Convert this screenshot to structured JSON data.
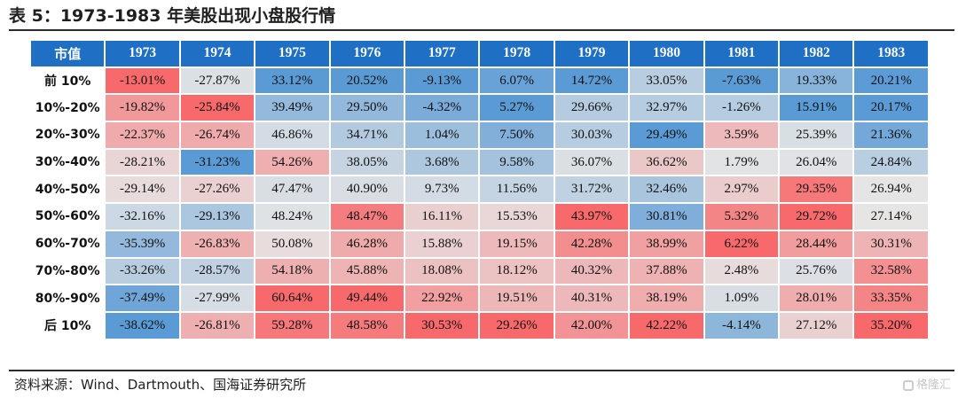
{
  "title": "表 5：1973-1983 年美股出现小盘股行情",
  "source": "资料来源：Wind、Dartmouth、国海证券研究所",
  "watermark": "格隆汇",
  "colors": {
    "header_bg": "#1f6fc5",
    "neg_max": "#5b9bd5",
    "neutral": "#e7e6e6",
    "pos_max": "#f8696b"
  },
  "chart_data": {
    "type": "heatmap",
    "corner_label": "市值",
    "columns": [
      "1973",
      "1974",
      "1975",
      "1976",
      "1977",
      "1978",
      "1979",
      "1980",
      "1981",
      "1982",
      "1983"
    ],
    "rows": [
      "前 10%",
      "10%-20%",
      "20%-30%",
      "30%-40%",
      "40%-50%",
      "50%-60%",
      "60%-70%",
      "70%-80%",
      "80%-90%",
      "后 10%"
    ],
    "values": [
      [
        -13.01,
        -27.87,
        33.12,
        20.52,
        -9.13,
        6.07,
        14.72,
        33.05,
        -7.63,
        19.33,
        20.21
      ],
      [
        -19.82,
        -25.84,
        39.49,
        29.5,
        -4.32,
        5.27,
        29.66,
        32.97,
        -1.26,
        15.91,
        20.17
      ],
      [
        -22.37,
        -26.74,
        46.86,
        34.71,
        1.04,
        7.5,
        30.03,
        29.49,
        3.59,
        25.39,
        21.36
      ],
      [
        -28.21,
        -31.23,
        54.26,
        38.05,
        3.68,
        9.58,
        36.07,
        36.62,
        1.79,
        26.04,
        24.84
      ],
      [
        -29.14,
        -27.26,
        47.47,
        40.9,
        9.73,
        11.56,
        31.72,
        32.46,
        2.97,
        29.35,
        26.94
      ],
      [
        -32.16,
        -29.13,
        48.24,
        48.47,
        16.11,
        15.53,
        43.97,
        30.81,
        5.32,
        29.72,
        27.14
      ],
      [
        -35.39,
        -26.83,
        50.08,
        46.28,
        15.88,
        19.15,
        42.28,
        38.99,
        6.22,
        28.44,
        30.31
      ],
      [
        -33.26,
        -28.57,
        54.18,
        45.88,
        18.08,
        18.12,
        40.32,
        37.88,
        2.48,
        25.76,
        32.58
      ],
      [
        -37.49,
        -27.99,
        60.64,
        49.44,
        22.92,
        19.51,
        40.31,
        38.19,
        1.09,
        28.01,
        33.35
      ],
      [
        -38.62,
        -26.81,
        59.28,
        48.58,
        30.53,
        29.26,
        42.0,
        42.22,
        -4.14,
        27.12,
        35.2
      ]
    ],
    "value_format": "percent_2dp",
    "color_scale": "per-column diverging: blue = lowest, grey = middle, red = highest"
  }
}
